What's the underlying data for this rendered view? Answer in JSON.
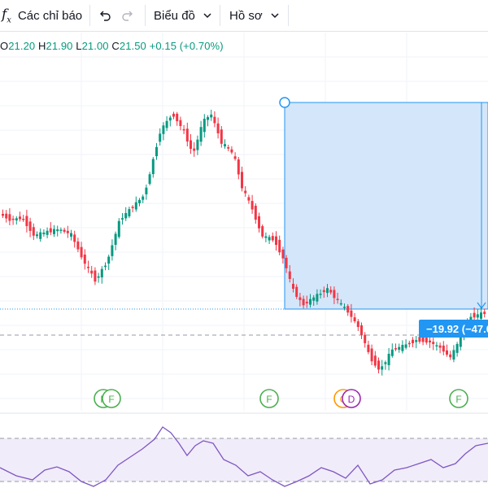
{
  "toolbar": {
    "fx_icon": "fx-icon",
    "indicators_label": "Các chỉ báo",
    "undo_icon": "undo-icon",
    "redo_icon": "redo-icon",
    "chart_label": "Biểu đồ",
    "profile_label": "Hồ sơ",
    "chevron_icon": "chevron-down-icon"
  },
  "ohlc": {
    "o_key": "O",
    "o_val": "21.20",
    "h_key": "H",
    "h_val": "21.90",
    "l_key": "L",
    "l_val": "21.00",
    "c_key": "C",
    "c_val": "21.50",
    "change": "+0.15 (+0.70%)"
  },
  "measure": {
    "label": "−19.92 (−47.0"
  },
  "event_markers": [
    "F",
    "F",
    "F",
    "C",
    "D",
    "F"
  ],
  "colors": {
    "up": "#089981",
    "down": "#f23645",
    "accent": "#2196f3",
    "measure_fill": "#d4e6f9",
    "rsi_line": "#7e57c2",
    "rsi_band": "#f1ecf9",
    "marker_green": "#4caf50",
    "marker_orange": "#ff9800",
    "marker_purple": "#9c27b0"
  }
}
